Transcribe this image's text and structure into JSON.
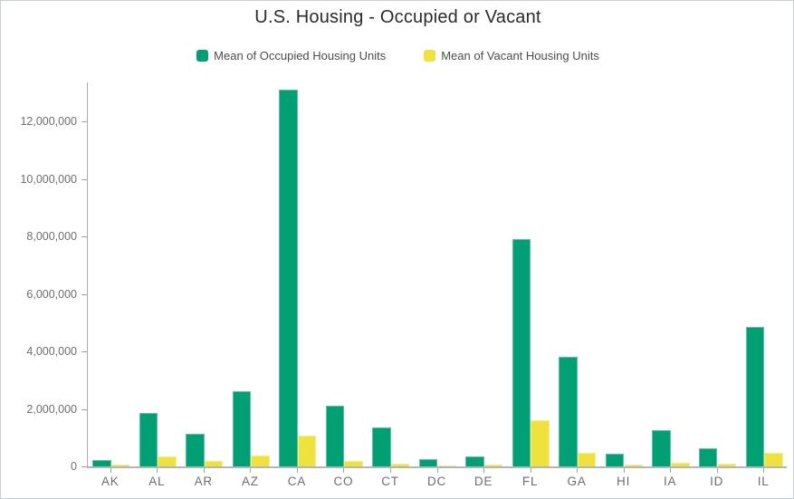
{
  "chart_data": {
    "type": "bar",
    "title": "U.S. Housing - Occupied or Vacant",
    "categories": [
      "AK",
      "AL",
      "AR",
      "AZ",
      "CA",
      "CO",
      "CT",
      "DC",
      "DE",
      "FL",
      "GA",
      "HI",
      "IA",
      "ID",
      "IL"
    ],
    "series": [
      {
        "name": "Mean of Occupied Housing Units",
        "color": "#00a075",
        "values": [
          220000,
          1850000,
          1150000,
          2600000,
          13100000,
          2100000,
          1350000,
          260000,
          350000,
          7900000,
          3800000,
          430000,
          1250000,
          640000,
          4850000
        ]
      },
      {
        "name": "Mean of Vacant Housing Units",
        "color": "#efe23d",
        "values": [
          60000,
          350000,
          180000,
          380000,
          1070000,
          200000,
          100000,
          30000,
          60000,
          1600000,
          470000,
          80000,
          130000,
          90000,
          470000
        ]
      }
    ],
    "xlabel": "",
    "ylabel": "",
    "ylim": [
      0,
      13300000
    ],
    "yticks": [
      0,
      2000000,
      4000000,
      6000000,
      8000000,
      10000000,
      12000000
    ],
    "ytick_labels": [
      "0",
      "2,000,000",
      "4,000,000",
      "6,000,000",
      "8,000,000",
      "10,000,000",
      "12,000,000"
    ],
    "grid": false,
    "legend_position": "top-center"
  },
  "colors": {
    "title_text": "#2b2b2b",
    "axis_text": "#6e6e6e",
    "axis_line": "#b2b6b8",
    "panel_border": "#c6cfd6",
    "background": "#ffffff"
  }
}
